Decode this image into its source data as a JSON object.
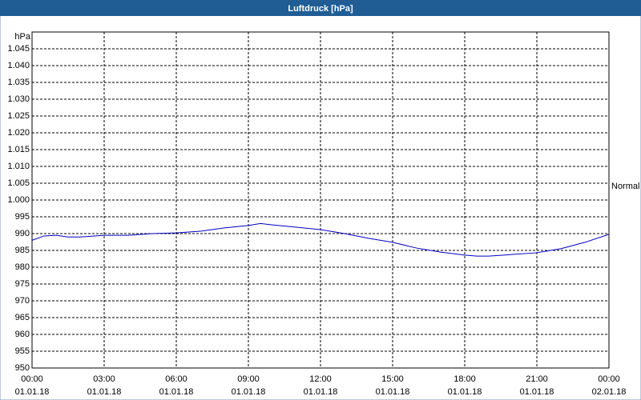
{
  "chart_data": {
    "type": "line",
    "title": "Luftdruck [hPa]",
    "y_label": "hPa",
    "x": [
      0,
      0.5,
      1,
      1.5,
      2,
      3,
      4,
      5,
      6,
      7,
      8,
      9,
      9.5,
      10,
      11,
      12,
      13,
      14,
      15,
      16,
      17,
      18,
      18.5,
      19,
      20,
      21,
      22,
      23,
      24
    ],
    "values": [
      988,
      989.3,
      989.5,
      989,
      989,
      989.5,
      989.5,
      990,
      990.2,
      990.7,
      991.7,
      992.4,
      993,
      992.6,
      991.9,
      991.2,
      990,
      988.6,
      987.4,
      985.7,
      984.5,
      983.6,
      983.3,
      983.3,
      983.8,
      984.3,
      985.5,
      987.4,
      989.8
    ],
    "color": "#0000c0",
    "xlim": [
      0,
      24
    ],
    "xticks": [
      {
        "value": 0,
        "label": "00:00\n01.01.18"
      },
      {
        "value": 3,
        "label": "03:00\n01.01.18"
      },
      {
        "value": 6,
        "label": "06:00\n01.01.18"
      },
      {
        "value": 9,
        "label": "09:00\n01.01.18"
      },
      {
        "value": 12,
        "label": "12:00\n01.01.18"
      },
      {
        "value": 15,
        "label": "15:00\n01.01.18"
      },
      {
        "value": 18,
        "label": "18:00\n01.01.18"
      },
      {
        "value": 21,
        "label": "21:00\n01.01.18"
      },
      {
        "value": 24,
        "label": "00:00\n02.01.18"
      }
    ],
    "ylim": [
      950,
      1050
    ],
    "yticks": [
      950,
      955,
      960,
      965,
      970,
      975,
      980,
      985,
      990,
      995,
      {
        "value": 1000,
        "label": "1.000"
      },
      {
        "value": 1005,
        "label": "1.005"
      },
      {
        "value": 1010,
        "label": "1.010"
      },
      {
        "value": 1015,
        "label": "1.015"
      },
      {
        "value": 1020,
        "label": "1.020"
      },
      {
        "value": 1025,
        "label": "1.025"
      },
      {
        "value": 1030,
        "label": "1.030"
      },
      {
        "value": 1035,
        "label": "1.035"
      },
      {
        "value": 1040,
        "label": "1.040"
      },
      {
        "value": 1045,
        "label": "1.045"
      }
    ],
    "grid": true,
    "annotation": {
      "text": "Normal",
      "value": 1004
    }
  }
}
